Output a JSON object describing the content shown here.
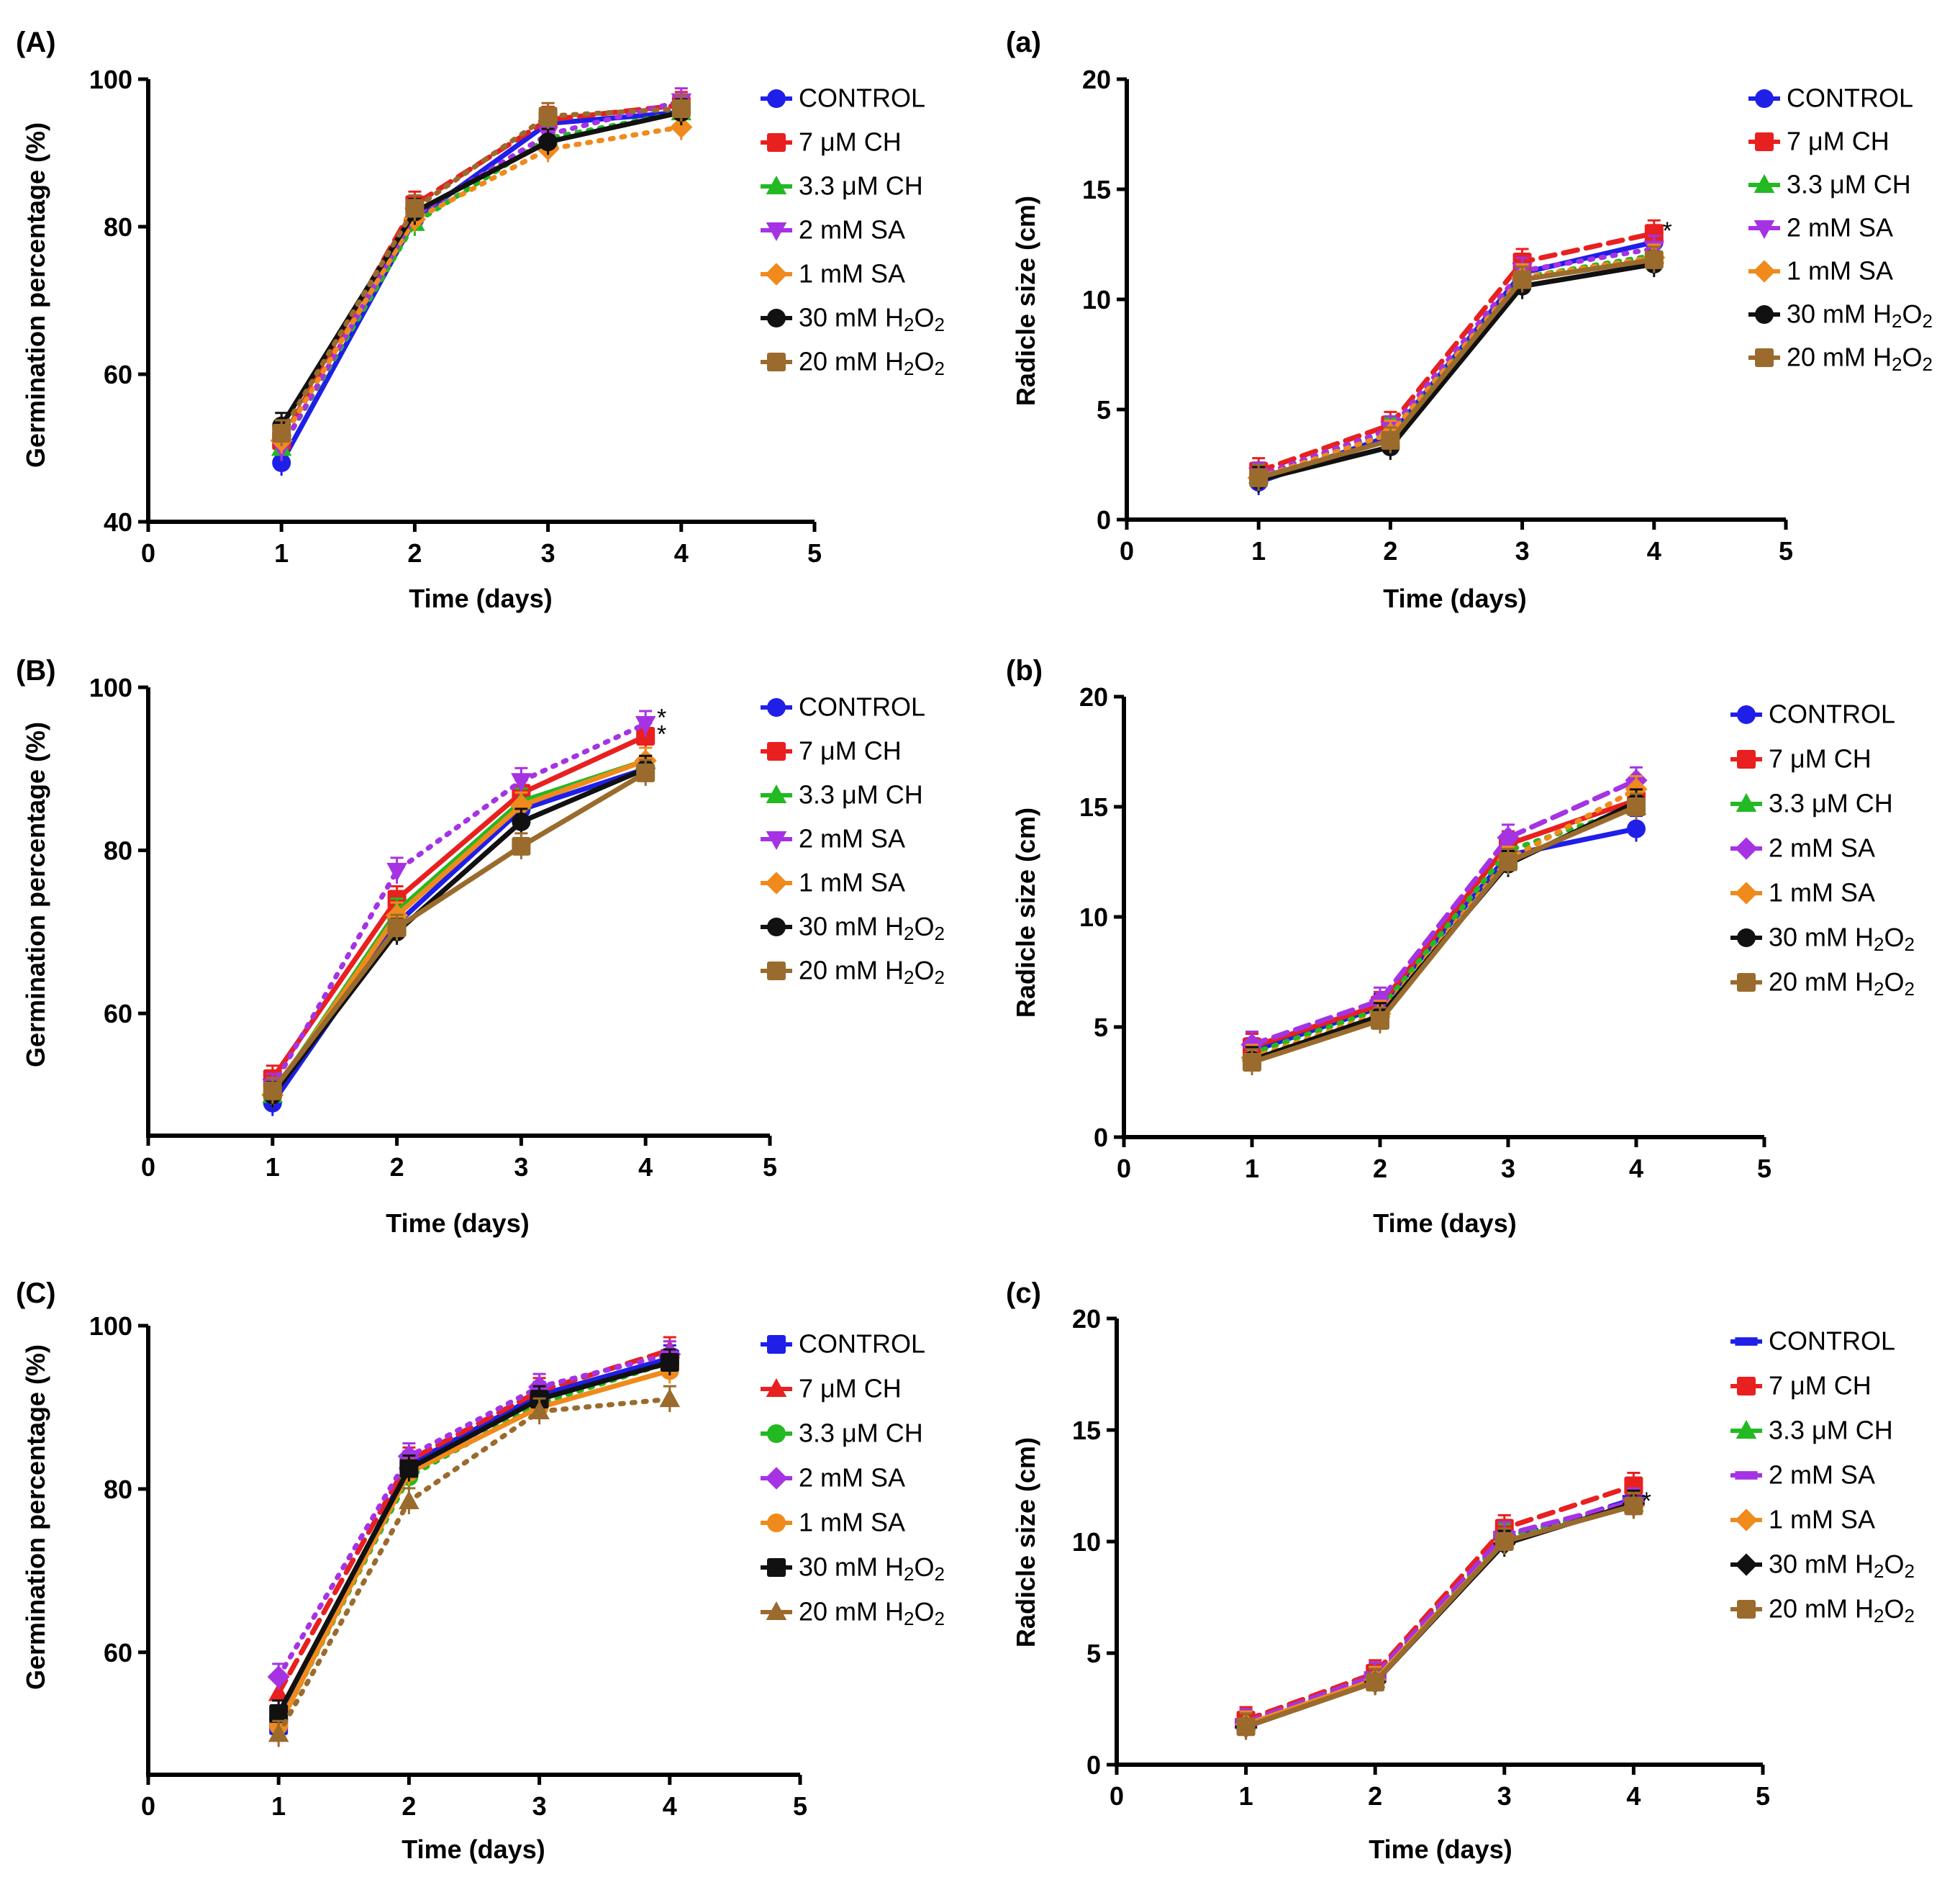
{
  "colors": {
    "control": "#1f1fe8",
    "ch7": "#e8201f",
    "ch33": "#22b922",
    "sa2": "#a533e3",
    "sa1": "#f08a1c",
    "h2o2_30": "#111111",
    "h2o2_20": "#9a6b2d"
  },
  "chart_data": [
    {
      "panel": "(A)",
      "type": "line",
      "xlabel": "Time (days)",
      "ylabel": "Germination percentage (%)",
      "xlim": [
        0,
        5
      ],
      "ylim": [
        40,
        100
      ],
      "xticks": [
        0,
        1,
        2,
        3,
        4,
        5
      ],
      "yticks": [
        40,
        60,
        80,
        100
      ],
      "x": [
        1,
        2,
        3,
        4
      ],
      "series": [
        {
          "name": "CONTROL",
          "key": "control",
          "marker": "circle",
          "dash": "solid",
          "values": [
            48,
            81,
            94,
            95.5
          ]
        },
        {
          "name": "7 μM CH",
          "key": "ch7",
          "marker": "square",
          "dash": "dashed",
          "values": [
            51,
            83,
            94.5,
            96.5
          ]
        },
        {
          "name": "3.3 μM CH",
          "key": "ch33",
          "marker": "triangle",
          "dash": "dotted",
          "values": [
            50,
            80.5,
            92,
            95.5
          ]
        },
        {
          "name": "2 mM SA",
          "key": "sa2",
          "marker": "triangle-down",
          "dash": "dotted",
          "values": [
            50,
            81.5,
            92.5,
            97
          ]
        },
        {
          "name": "1 mM SA",
          "key": "sa1",
          "marker": "diamond",
          "dash": "dotted",
          "values": [
            51,
            81,
            90.5,
            93.5
          ]
        },
        {
          "name": "30 mM H2O2",
          "key": "h2o2_30",
          "marker": "circle",
          "dash": "solid",
          "values": [
            53,
            82,
            91.5,
            95.5
          ]
        },
        {
          "name": "20 mM H2O2",
          "key": "h2o2_20",
          "marker": "square",
          "dash": "dotted",
          "values": [
            52,
            82.5,
            95,
            96
          ]
        }
      ],
      "annotations": []
    },
    {
      "panel": "(a)",
      "type": "line",
      "xlabel": "Time (days)",
      "ylabel": "Radicle size (cm)",
      "xlim": [
        0,
        5
      ],
      "ylim": [
        0,
        20
      ],
      "xticks": [
        0,
        1,
        2,
        3,
        4,
        5
      ],
      "yticks": [
        0,
        5,
        10,
        15,
        20
      ],
      "x": [
        1,
        2,
        3,
        4
      ],
      "series": [
        {
          "name": "CONTROL",
          "key": "control",
          "marker": "circle",
          "dash": "solid",
          "values": [
            1.7,
            3.8,
            11.2,
            12.6
          ]
        },
        {
          "name": "7 μM CH",
          "key": "ch7",
          "marker": "square",
          "dash": "dashed",
          "values": [
            2.2,
            4.3,
            11.7,
            13.0
          ]
        },
        {
          "name": "3.3 μM CH",
          "key": "ch33",
          "marker": "triangle",
          "dash": "dotted",
          "values": [
            2.0,
            4.0,
            11.0,
            12.0
          ]
        },
        {
          "name": "2 mM SA",
          "key": "sa2",
          "marker": "triangle-down",
          "dash": "dotted",
          "values": [
            2.0,
            4.1,
            11.3,
            12.3
          ]
        },
        {
          "name": "1 mM SA",
          "key": "sa1",
          "marker": "diamond",
          "dash": "dotted",
          "values": [
            1.9,
            3.9,
            11.0,
            11.9
          ]
        },
        {
          "name": "30 mM H2O2",
          "key": "h2o2_30",
          "marker": "circle",
          "dash": "solid",
          "values": [
            1.8,
            3.3,
            10.6,
            11.6
          ]
        },
        {
          "name": "20 mM H2O2",
          "key": "h2o2_20",
          "marker": "square",
          "dash": "solid",
          "values": [
            1.9,
            3.6,
            10.9,
            11.8
          ]
        }
      ],
      "annotations": [
        {
          "text": "*",
          "x": 4.1,
          "y": 13.2
        }
      ]
    },
    {
      "panel": "(B)",
      "type": "line",
      "xlabel": "Time (days)",
      "ylabel": "Germination percentage (%)",
      "xlim": [
        0,
        5
      ],
      "ylim": [
        45,
        100
      ],
      "xticks": [
        0,
        1,
        2,
        3,
        4,
        5
      ],
      "yticks": [
        60,
        80,
        100
      ],
      "x": [
        1,
        2,
        3,
        4
      ],
      "series": [
        {
          "name": "CONTROL",
          "key": "control",
          "marker": "circle",
          "dash": "solid",
          "values": [
            49,
            71,
            85,
            90
          ]
        },
        {
          "name": "7 μM CH",
          "key": "ch7",
          "marker": "square",
          "dash": "solid",
          "values": [
            52,
            74,
            87,
            94
          ]
        },
        {
          "name": "3.3 μM CH",
          "key": "ch33",
          "marker": "triangle",
          "dash": "solid",
          "values": [
            50,
            72.5,
            86,
            91
          ]
        },
        {
          "name": "2 mM SA",
          "key": "sa2",
          "marker": "triangle-down",
          "dash": "dotted",
          "values": [
            51,
            77.5,
            88.5,
            95.5
          ]
        },
        {
          "name": "1 mM SA",
          "key": "sa1",
          "marker": "diamond",
          "dash": "solid",
          "values": [
            50,
            72,
            85.5,
            91
          ]
        },
        {
          "name": "30 mM H2O2",
          "key": "h2o2_30",
          "marker": "circle",
          "dash": "solid",
          "values": [
            50,
            70,
            83.5,
            90
          ]
        },
        {
          "name": "20 mM H2O2",
          "key": "h2o2_20",
          "marker": "square",
          "dash": "solid",
          "values": [
            50.5,
            70.5,
            80.5,
            89.5
          ]
        }
      ],
      "annotations": [
        {
          "text": "*",
          "x": 4.13,
          "y": 96.5
        },
        {
          "text": "*",
          "x": 4.13,
          "y": 94.5
        }
      ]
    },
    {
      "panel": "(b)",
      "type": "line",
      "xlabel": "Time (days)",
      "ylabel": "Radicle size (cm)",
      "xlim": [
        0,
        5
      ],
      "ylim": [
        0,
        20
      ],
      "xticks": [
        0,
        1,
        2,
        3,
        4,
        5
      ],
      "yticks": [
        0,
        5,
        10,
        15,
        20
      ],
      "x": [
        1,
        2,
        3,
        4
      ],
      "series": [
        {
          "name": "CONTROL",
          "key": "control",
          "marker": "circle",
          "dash": "solid",
          "values": [
            3.9,
            5.9,
            12.8,
            14.0
          ]
        },
        {
          "name": "7 μM CH",
          "key": "ch7",
          "marker": "square",
          "dash": "solid",
          "values": [
            4.1,
            6.0,
            13.3,
            15.3
          ]
        },
        {
          "name": "3.3 μM CH",
          "key": "ch33",
          "marker": "triangle",
          "dash": "dotted",
          "values": [
            3.8,
            5.8,
            13.0,
            15.0
          ]
        },
        {
          "name": "2 mM SA",
          "key": "sa2",
          "marker": "diamond",
          "dash": "dashed",
          "values": [
            4.2,
            6.2,
            13.6,
            16.2
          ]
        },
        {
          "name": "1 mM SA",
          "key": "sa1",
          "marker": "diamond",
          "dash": "dotted",
          "values": [
            3.6,
            5.6,
            12.6,
            15.8
          ]
        },
        {
          "name": "30 mM H2O2",
          "key": "h2o2_30",
          "marker": "circle",
          "dash": "solid",
          "values": [
            3.5,
            5.5,
            12.4,
            15.2
          ]
        },
        {
          "name": "20 mM H2O2",
          "key": "h2o2_20",
          "marker": "square",
          "dash": "solid",
          "values": [
            3.4,
            5.3,
            12.5,
            15.0
          ]
        }
      ],
      "annotations": []
    },
    {
      "panel": "(C)",
      "type": "line",
      "xlabel": "Time (days)",
      "ylabel": "Germination percentage (%)",
      "xlim": [
        0,
        5
      ],
      "ylim": [
        45,
        100
      ],
      "xticks": [
        0,
        1,
        2,
        3,
        4,
        5
      ],
      "yticks": [
        60,
        80,
        100
      ],
      "x": [
        1,
        2,
        3,
        4
      ],
      "series": [
        {
          "name": "CONTROL",
          "key": "control",
          "marker": "square",
          "dash": "solid",
          "values": [
            51,
            83,
            91.5,
            96
          ]
        },
        {
          "name": "7 μM CH",
          "key": "ch7",
          "marker": "triangle",
          "dash": "dashed",
          "values": [
            55,
            83.5,
            92,
            97
          ]
        },
        {
          "name": "3.3 μM CH",
          "key": "ch33",
          "marker": "circle",
          "dash": "dotted",
          "values": [
            51,
            81.5,
            90.5,
            95.5
          ]
        },
        {
          "name": "2 mM SA",
          "key": "sa2",
          "marker": "diamond",
          "dash": "dotted",
          "values": [
            57,
            84,
            92.5,
            96.5
          ]
        },
        {
          "name": "1 mM SA",
          "key": "sa1",
          "marker": "circle",
          "dash": "solid",
          "values": [
            51,
            82,
            90,
            94.5
          ]
        },
        {
          "name": "30 mM H2O2",
          "key": "h2o2_30",
          "marker": "square",
          "dash": "solid",
          "values": [
            52.5,
            82.5,
            91,
            95.5
          ]
        },
        {
          "name": "20 mM H2O2",
          "key": "h2o2_20",
          "marker": "triangle",
          "dash": "dotted",
          "values": [
            50,
            78.5,
            89.5,
            91
          ]
        }
      ],
      "annotations": []
    },
    {
      "panel": "(c)",
      "type": "line",
      "xlabel": "Time (days)",
      "ylabel": "Radicle size (cm)",
      "xlim": [
        0,
        5
      ],
      "ylim": [
        0,
        20
      ],
      "xticks": [
        0,
        1,
        2,
        3,
        4,
        5
      ],
      "yticks": [
        0,
        5,
        10,
        15,
        20
      ],
      "x": [
        1,
        2,
        3,
        4
      ],
      "series": [
        {
          "name": "CONTROL",
          "key": "control",
          "marker": "dash",
          "dash": "dashed",
          "values": [
            1.8,
            3.9,
            10.1,
            11.9
          ]
        },
        {
          "name": "7 μM CH",
          "key": "ch7",
          "marker": "square",
          "dash": "dashed",
          "values": [
            2.0,
            4.1,
            10.6,
            12.5
          ]
        },
        {
          "name": "3.3 μM CH",
          "key": "ch33",
          "marker": "triangle",
          "dash": "dotted",
          "values": [
            1.9,
            3.8,
            10.2,
            11.7
          ]
        },
        {
          "name": "2 mM SA",
          "key": "sa2",
          "marker": "dash",
          "dash": "dashed",
          "values": [
            1.9,
            4.0,
            10.3,
            11.8
          ]
        },
        {
          "name": "1 mM SA",
          "key": "sa1",
          "marker": "diamond",
          "dash": "solid",
          "values": [
            1.8,
            3.8,
            10.0,
            11.6
          ]
        },
        {
          "name": "30 mM H2O2",
          "key": "h2o2_30",
          "marker": "diamond",
          "dash": "solid",
          "values": [
            1.7,
            3.7,
            9.9,
            11.7
          ]
        },
        {
          "name": "20 mM H2O2",
          "key": "h2o2_20",
          "marker": "square",
          "dash": "solid",
          "values": [
            1.7,
            3.7,
            10.0,
            11.6
          ]
        }
      ],
      "annotations": [
        {
          "text": "*",
          "x": 4.1,
          "y": 11.9
        }
      ]
    }
  ]
}
